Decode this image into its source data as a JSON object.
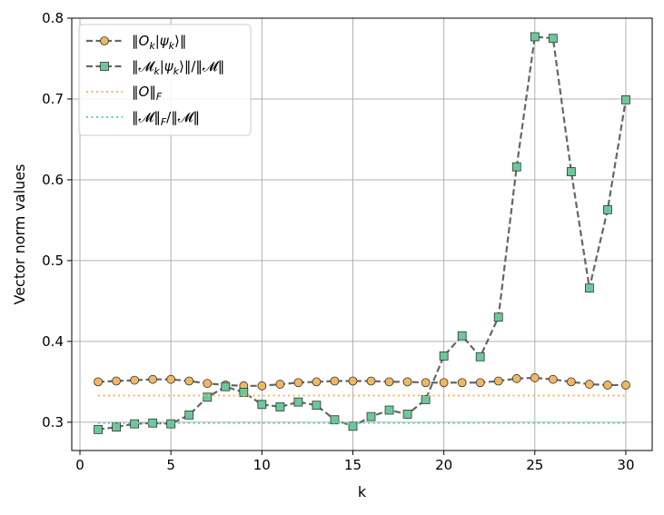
{
  "chart_data": {
    "type": "line",
    "xlabel": "k",
    "ylabel": "Vector norm values",
    "xlim": [
      -0.45,
      31.45
    ],
    "ylim": [
      0.265,
      0.8
    ],
    "x_ticks": [
      0,
      5,
      10,
      15,
      20,
      25,
      30
    ],
    "x_tick_labels": [
      "0",
      "5",
      "10",
      "15",
      "20",
      "25",
      "30"
    ],
    "y_ticks": [
      0.3,
      0.4,
      0.5,
      0.6,
      0.7,
      0.8
    ],
    "y_tick_labels": [
      "0.3",
      "0.4",
      "0.5",
      "0.6",
      "0.7",
      "0.8"
    ],
    "grid": true,
    "legend_position": "upper-left",
    "x": [
      1,
      2,
      3,
      4,
      5,
      6,
      7,
      8,
      9,
      10,
      11,
      12,
      13,
      14,
      15,
      16,
      17,
      18,
      19,
      20,
      21,
      22,
      23,
      24,
      25,
      26,
      27,
      28,
      29,
      30
    ],
    "series": [
      {
        "name": "‖O_k|ψ_k⟩‖",
        "style": "dashed-circle",
        "marker_color": "#f0b762",
        "line_color": "#666666",
        "values": [
          0.35,
          0.351,
          0.352,
          0.353,
          0.353,
          0.351,
          0.348,
          0.346,
          0.345,
          0.345,
          0.347,
          0.349,
          0.35,
          0.351,
          0.351,
          0.351,
          0.35,
          0.35,
          0.349,
          0.349,
          0.349,
          0.349,
          0.351,
          0.354,
          0.355,
          0.353,
          0.35,
          0.347,
          0.346,
          0.346
        ]
      },
      {
        "name": "‖𝓜_k|ψ_k⟩‖/‖𝓜‖",
        "style": "dashed-square",
        "marker_color": "#6cc89a",
        "line_color": "#666666",
        "values": [
          0.291,
          0.294,
          0.298,
          0.299,
          0.298,
          0.309,
          0.331,
          0.344,
          0.337,
          0.322,
          0.319,
          0.325,
          0.321,
          0.303,
          0.295,
          0.307,
          0.315,
          0.31,
          0.328,
          0.382,
          0.407,
          0.381,
          0.43,
          0.616,
          0.777,
          0.775,
          0.61,
          0.466,
          0.563,
          0.699
        ]
      },
      {
        "name": "‖O‖_F",
        "style": "dotted",
        "line_color": "#f0b762",
        "x_range": [
          1,
          30
        ],
        "value": 0.333
      },
      {
        "name": "‖𝓜‖_F/‖𝓜‖",
        "style": "dotted",
        "line_color": "#5fd0b0",
        "x_range": [
          1,
          30
        ],
        "value": 0.299
      }
    ]
  }
}
